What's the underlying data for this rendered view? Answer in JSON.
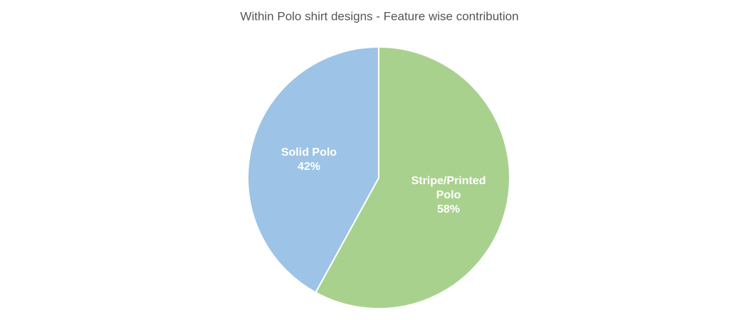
{
  "chart_data": {
    "type": "pie",
    "title": "Within Polo shirt designs - Feature wise contribution",
    "categories": [
      "Stripe/Printed Polo",
      "Solid Polo"
    ],
    "values": [
      58,
      42
    ],
    "value_labels": [
      "58%",
      "42%"
    ],
    "colors": [
      "#a9d18e",
      "#9dc3e6"
    ]
  }
}
